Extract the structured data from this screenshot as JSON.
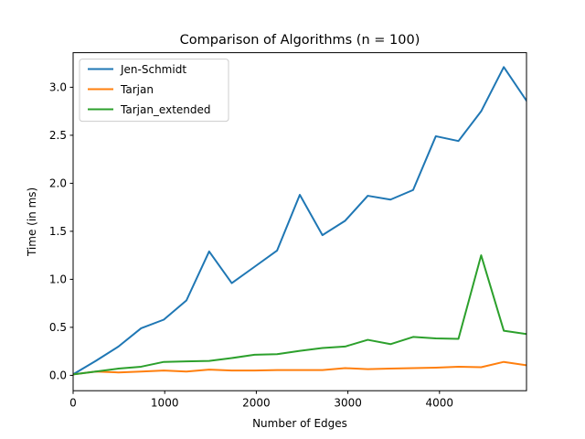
{
  "chart_data": {
    "type": "line",
    "title": "Comparison of Algorithms (n = 100)",
    "xlabel": "Number of Edges",
    "ylabel": "Time (in ms)",
    "xlim": [
      0,
      4950
    ],
    "ylim": [
      -0.16,
      3.36
    ],
    "xticks": [
      0,
      1000,
      2000,
      3000,
      4000
    ],
    "xtick_labels": [
      "0",
      "1000",
      "2000",
      "3000",
      "4000"
    ],
    "yticks": [
      0.0,
      0.5,
      1.0,
      1.5,
      2.0,
      2.5,
      3.0
    ],
    "ytick_labels": [
      "0.0",
      "0.5",
      "1.0",
      "1.5",
      "2.0",
      "2.5",
      "3.0"
    ],
    "grid": false,
    "legend": "top-left",
    "x": [
      0,
      247,
      495,
      742,
      990,
      1237,
      1485,
      1732,
      1980,
      2227,
      2475,
      2722,
      2970,
      3217,
      3465,
      3712,
      3960,
      4207,
      4455,
      4702,
      4950
    ],
    "series": [
      {
        "name": "Jen-Schmidt",
        "color": "#1f77b4",
        "values": [
          0.01,
          0.15,
          0.3,
          0.49,
          0.58,
          0.78,
          1.29,
          0.96,
          1.13,
          1.3,
          1.88,
          1.46,
          1.61,
          1.87,
          1.83,
          1.93,
          2.49,
          2.44,
          2.75,
          3.21,
          2.86
        ]
      },
      {
        "name": "Tarjan",
        "color": "#ff7f0e",
        "values": [
          0.01,
          0.04,
          0.03,
          0.04,
          0.05,
          0.04,
          0.06,
          0.05,
          0.05,
          0.055,
          0.055,
          0.055,
          0.075,
          0.065,
          0.07,
          0.075,
          0.08,
          0.09,
          0.085,
          0.14,
          0.105
        ]
      },
      {
        "name": "Tarjan_extended",
        "color": "#2ca02c",
        "values": [
          0.01,
          0.04,
          0.07,
          0.09,
          0.14,
          0.145,
          0.15,
          0.18,
          0.215,
          0.22,
          0.255,
          0.285,
          0.3,
          0.37,
          0.325,
          0.4,
          0.385,
          0.38,
          1.25,
          0.465,
          0.43
        ]
      }
    ]
  }
}
